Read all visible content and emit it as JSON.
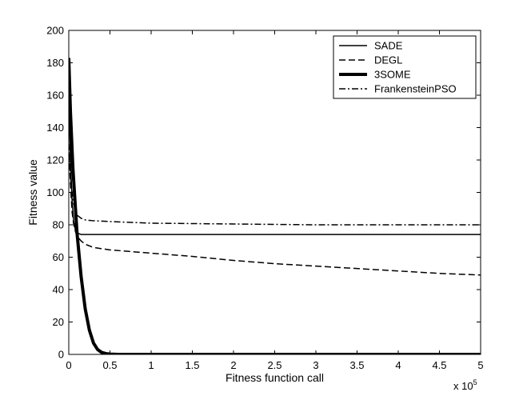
{
  "chart_data": {
    "type": "line",
    "xlabel": "Fitness function call",
    "ylabel": "Fitness value",
    "x_multiplier_label": "x 10",
    "x_multiplier_exponent": "5",
    "xlim": [
      0,
      5
    ],
    "ylim": [
      0,
      200
    ],
    "xticks": [
      0,
      0.5,
      1,
      1.5,
      2,
      2.5,
      3,
      3.5,
      4,
      4.5,
      5
    ],
    "yticks": [
      0,
      20,
      40,
      60,
      80,
      100,
      120,
      140,
      160,
      180,
      200
    ],
    "grid": false,
    "legend_position": "top-right",
    "series": [
      {
        "name": "SADE",
        "style": "solid",
        "x": [
          0,
          0.02,
          0.04,
          0.06,
          0.08,
          0.1,
          0.15,
          0.2,
          0.5,
          1,
          2,
          3,
          4,
          5
        ],
        "y": [
          160,
          120,
          95,
          82,
          77,
          75,
          74,
          74,
          74,
          74,
          74,
          74,
          74,
          74
        ]
      },
      {
        "name": "DEGL",
        "style": "dashed",
        "x": [
          0,
          0.02,
          0.04,
          0.06,
          0.08,
          0.1,
          0.15,
          0.2,
          0.3,
          0.5,
          1,
          1.5,
          2,
          2.5,
          3,
          3.5,
          4,
          4.5,
          5
        ],
        "y": [
          130,
          105,
          88,
          80,
          76,
          73,
          70,
          68,
          66,
          64.5,
          62.5,
          60.5,
          58,
          56,
          54.5,
          53,
          51.5,
          50,
          49
        ]
      },
      {
        "name": "3SOME",
        "style": "thick",
        "x": [
          0,
          0.02,
          0.05,
          0.1,
          0.15,
          0.2,
          0.25,
          0.3,
          0.35,
          0.4,
          0.45,
          0.5,
          0.6,
          1,
          2,
          3,
          4,
          5
        ],
        "y": [
          183,
          150,
          115,
          75,
          48,
          28,
          15,
          7,
          3,
          1.2,
          0.5,
          0.2,
          0,
          0,
          0,
          0,
          0,
          0
        ]
      },
      {
        "name": "FrankensteinPSO",
        "style": "dashdot",
        "x": [
          0,
          0.02,
          0.04,
          0.06,
          0.08,
          0.1,
          0.15,
          0.2,
          0.3,
          0.5,
          1,
          2,
          3,
          4,
          5
        ],
        "y": [
          125,
          110,
          100,
          93,
          89,
          86,
          84,
          83,
          82.5,
          82,
          81,
          80.5,
          80,
          80,
          80
        ]
      }
    ]
  }
}
